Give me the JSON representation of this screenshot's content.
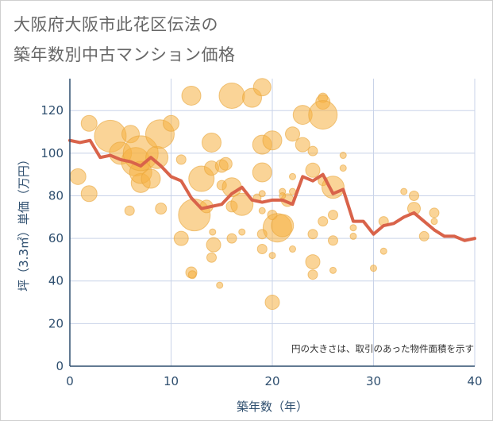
{
  "title_line1": "大阪府大阪市此花区伝法の",
  "title_line2": "築年数別中古マンション価格",
  "chart_data": {
    "type": "scatter",
    "title": "大阪府大阪市此花区伝法の築年数別中古マンション価格",
    "xlabel": "築年数（年）",
    "ylabel": "坪（3.3㎡）単価（万円）",
    "note": "円の大きさは、取引のあった物件面積を示す",
    "xlim": [
      0,
      40
    ],
    "ylim": [
      0,
      135
    ],
    "xticks": [
      0,
      10,
      20,
      30,
      40
    ],
    "yticks": [
      0,
      20,
      40,
      60,
      80,
      100,
      120
    ],
    "grid": true,
    "colors": {
      "bubble": "#f5b041",
      "line": "#d9634a",
      "grid": "#c9d3e8",
      "axis": "#2f4f6f"
    },
    "bubbles": [
      {
        "x": 0.8,
        "y": 89,
        "s": 10
      },
      {
        "x": 1.9,
        "y": 114,
        "s": 10
      },
      {
        "x": 1.9,
        "y": 81,
        "s": 10
      },
      {
        "x": 4.0,
        "y": 108,
        "s": 20
      },
      {
        "x": 5.0,
        "y": 100,
        "s": 14
      },
      {
        "x": 6.0,
        "y": 109,
        "s": 11
      },
      {
        "x": 5.9,
        "y": 73,
        "s": 6
      },
      {
        "x": 6.5,
        "y": 96,
        "s": 18
      },
      {
        "x": 7.0,
        "y": 86,
        "s": 12
      },
      {
        "x": 7.0,
        "y": 91,
        "s": 14
      },
      {
        "x": 7.0,
        "y": 100,
        "s": 22
      },
      {
        "x": 8.0,
        "y": 88,
        "s": 12
      },
      {
        "x": 8.6,
        "y": 98,
        "s": 14
      },
      {
        "x": 8.9,
        "y": 109,
        "s": 18
      },
      {
        "x": 9.0,
        "y": 74,
        "s": 7
      },
      {
        "x": 10.0,
        "y": 114,
        "s": 10
      },
      {
        "x": 11.0,
        "y": 97,
        "s": 6
      },
      {
        "x": 11.0,
        "y": 60,
        "s": 9
      },
      {
        "x": 12.0,
        "y": 127,
        "s": 12
      },
      {
        "x": 12.0,
        "y": 44,
        "s": 7
      },
      {
        "x": 12.1,
        "y": 43,
        "s": 5
      },
      {
        "x": 12.3,
        "y": 71,
        "s": 20
      },
      {
        "x": 13.0,
        "y": 88,
        "s": 16
      },
      {
        "x": 13.5,
        "y": 75,
        "s": 8
      },
      {
        "x": 14.0,
        "y": 105,
        "s": 12
      },
      {
        "x": 14.0,
        "y": 93,
        "s": 9
      },
      {
        "x": 14.1,
        "y": 63,
        "s": 4
      },
      {
        "x": 14.2,
        "y": 57,
        "s": 9
      },
      {
        "x": 14.0,
        "y": 51,
        "s": 6
      },
      {
        "x": 14.8,
        "y": 38,
        "s": 4
      },
      {
        "x": 15.0,
        "y": 94,
        "s": 8
      },
      {
        "x": 15.0,
        "y": 85,
        "s": 6
      },
      {
        "x": 15.4,
        "y": 95,
        "s": 8
      },
      {
        "x": 16.0,
        "y": 127,
        "s": 16
      },
      {
        "x": 16.0,
        "y": 84,
        "s": 12
      },
      {
        "x": 16.0,
        "y": 75,
        "s": 7
      },
      {
        "x": 16.0,
        "y": 60,
        "s": 6
      },
      {
        "x": 17.0,
        "y": 76,
        "s": 14
      },
      {
        "x": 17.0,
        "y": 63,
        "s": 4
      },
      {
        "x": 18.0,
        "y": 126,
        "s": 12
      },
      {
        "x": 18.5,
        "y": 79,
        "s": 5
      },
      {
        "x": 19.0,
        "y": 131,
        "s": 11
      },
      {
        "x": 19.0,
        "y": 104,
        "s": 12
      },
      {
        "x": 19.0,
        "y": 91,
        "s": 12
      },
      {
        "x": 19.0,
        "y": 81,
        "s": 4
      },
      {
        "x": 19.0,
        "y": 73,
        "s": 4
      },
      {
        "x": 19.0,
        "y": 62,
        "s": 6
      },
      {
        "x": 19.0,
        "y": 55,
        "s": 6
      },
      {
        "x": 20.0,
        "y": 106,
        "s": 12
      },
      {
        "x": 20.0,
        "y": 71,
        "s": 6
      },
      {
        "x": 20.0,
        "y": 52,
        "s": 4
      },
      {
        "x": 20.0,
        "y": 30,
        "s": 9
      },
      {
        "x": 20.5,
        "y": 65,
        "s": 18
      },
      {
        "x": 21.0,
        "y": 82,
        "s": 4
      },
      {
        "x": 21.0,
        "y": 66,
        "s": 14
      },
      {
        "x": 21.5,
        "y": 78,
        "s": 8
      },
      {
        "x": 21.0,
        "y": 80,
        "s": 4
      },
      {
        "x": 22.0,
        "y": 109,
        "s": 9
      },
      {
        "x": 22.0,
        "y": 89,
        "s": 4
      },
      {
        "x": 22.0,
        "y": 55,
        "s": 4
      },
      {
        "x": 22.0,
        "y": 82,
        "s": 4
      },
      {
        "x": 23.0,
        "y": 118,
        "s": 12
      },
      {
        "x": 23.0,
        "y": 104,
        "s": 9
      },
      {
        "x": 24.0,
        "y": 101,
        "s": 6
      },
      {
        "x": 24.0,
        "y": 92,
        "s": 9
      },
      {
        "x": 24.0,
        "y": 62,
        "s": 6
      },
      {
        "x": 24.0,
        "y": 49,
        "s": 9
      },
      {
        "x": 24.0,
        "y": 43,
        "s": 6
      },
      {
        "x": 25.0,
        "y": 126,
        "s": 6
      },
      {
        "x": 25.0,
        "y": 124,
        "s": 9
      },
      {
        "x": 25.0,
        "y": 118,
        "s": 18
      },
      {
        "x": 25.0,
        "y": 68,
        "s": 6
      },
      {
        "x": 25.0,
        "y": 87,
        "s": 6
      },
      {
        "x": 26.0,
        "y": 84,
        "s": 14
      },
      {
        "x": 26.0,
        "y": 71,
        "s": 6
      },
      {
        "x": 26.0,
        "y": 59,
        "s": 6
      },
      {
        "x": 26.0,
        "y": 45,
        "s": 4
      },
      {
        "x": 27.0,
        "y": 99,
        "s": 4
      },
      {
        "x": 27.0,
        "y": 93,
        "s": 4
      },
      {
        "x": 28.0,
        "y": 65,
        "s": 4
      },
      {
        "x": 28.0,
        "y": 61,
        "s": 4
      },
      {
        "x": 30.0,
        "y": 46,
        "s": 4
      },
      {
        "x": 31.0,
        "y": 68,
        "s": 6
      },
      {
        "x": 31.0,
        "y": 54,
        "s": 4
      },
      {
        "x": 33.0,
        "y": 82,
        "s": 4
      },
      {
        "x": 34.0,
        "y": 80,
        "s": 6
      },
      {
        "x": 34.0,
        "y": 74,
        "s": 8
      },
      {
        "x": 35.0,
        "y": 61,
        "s": 6
      },
      {
        "x": 36.0,
        "y": 72,
        "s": 6
      },
      {
        "x": 36.0,
        "y": 68,
        "s": 4
      }
    ],
    "series": [
      {
        "x": [
          0,
          1,
          2,
          3,
          4,
          5,
          6,
          7,
          8,
          9,
          10,
          11,
          12,
          13,
          14,
          15,
          16,
          17,
          18,
          19,
          20,
          21,
          22,
          23,
          24,
          25,
          26,
          27,
          28,
          29,
          30,
          31,
          32,
          33,
          34,
          35,
          36,
          37,
          38,
          39,
          40
        ],
        "values": [
          106,
          105,
          106,
          98,
          99,
          97,
          96,
          94,
          98,
          94,
          89,
          87,
          79,
          74,
          75,
          76,
          81,
          84,
          78,
          77,
          78,
          78,
          76,
          89,
          87,
          90,
          81,
          83,
          68,
          68,
          62,
          66,
          67,
          70,
          72,
          68,
          64,
          61,
          61,
          59,
          60
        ]
      }
    ]
  }
}
